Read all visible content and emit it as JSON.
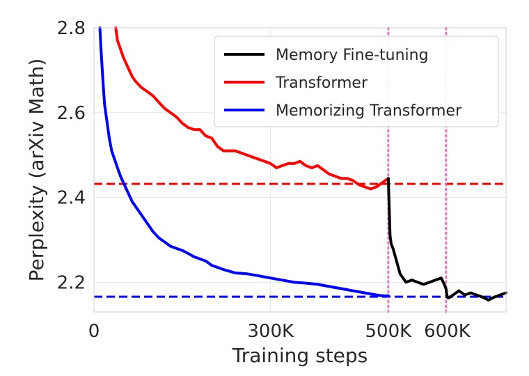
{
  "chart_data": {
    "type": "line",
    "title": "",
    "xlabel": "Training steps",
    "ylabel": "Perplexity (arXiv Math)",
    "xlim": [
      0,
      700000
    ],
    "ylim": [
      2.13,
      2.8
    ],
    "grid": true,
    "legend_position": "top-right",
    "x_ticks": [
      {
        "value": 0,
        "label": "0"
      },
      {
        "value": 300000,
        "label": "300K"
      },
      {
        "value": 500000,
        "label": "500K"
      },
      {
        "value": 600000,
        "label": "600K"
      }
    ],
    "y_ticks": [
      {
        "value": 2.2,
        "label": "2.2"
      },
      {
        "value": 2.4,
        "label": "2.4"
      },
      {
        "value": 2.6,
        "label": "2.6"
      },
      {
        "value": 2.8,
        "label": "2.8"
      }
    ],
    "series": [
      {
        "name": "Memory Fine-tuning",
        "color": "#000000",
        "x": [
          500000,
          501000,
          503000,
          505000,
          508000,
          512000,
          516000,
          520000,
          525000,
          530000,
          540000,
          550000,
          560000,
          570000,
          580000,
          590000,
          595000,
          598000,
          600000,
          602000,
          605000,
          610000,
          615000,
          620000,
          630000,
          640000,
          650000,
          660000,
          670000,
          680000,
          690000,
          700000
        ],
        "y": [
          2.445,
          2.4,
          2.31,
          2.29,
          2.28,
          2.26,
          2.24,
          2.22,
          2.21,
          2.2,
          2.205,
          2.2,
          2.195,
          2.2,
          2.205,
          2.21,
          2.195,
          2.185,
          2.165,
          2.163,
          2.165,
          2.17,
          2.175,
          2.18,
          2.17,
          2.175,
          2.17,
          2.165,
          2.158,
          2.165,
          2.17,
          2.175
        ]
      },
      {
        "name": "Transformer",
        "color": "#ff0000",
        "x": [
          37000,
          40000,
          45000,
          50000,
          55000,
          60000,
          65000,
          70000,
          80000,
          90000,
          100000,
          110000,
          120000,
          130000,
          140000,
          150000,
          160000,
          170000,
          180000,
          190000,
          200000,
          210000,
          220000,
          230000,
          240000,
          250000,
          260000,
          270000,
          280000,
          290000,
          300000,
          310000,
          320000,
          330000,
          340000,
          350000,
          360000,
          370000,
          380000,
          390000,
          400000,
          410000,
          420000,
          430000,
          440000,
          450000,
          460000,
          470000,
          480000,
          490000,
          495000,
          500000
        ],
        "y": [
          2.8,
          2.77,
          2.75,
          2.73,
          2.715,
          2.7,
          2.685,
          2.675,
          2.66,
          2.65,
          2.64,
          2.625,
          2.61,
          2.6,
          2.59,
          2.575,
          2.565,
          2.56,
          2.56,
          2.545,
          2.54,
          2.52,
          2.51,
          2.51,
          2.51,
          2.505,
          2.5,
          2.495,
          2.49,
          2.485,
          2.48,
          2.47,
          2.475,
          2.48,
          2.48,
          2.485,
          2.475,
          2.47,
          2.475,
          2.465,
          2.455,
          2.45,
          2.445,
          2.445,
          2.44,
          2.43,
          2.425,
          2.42,
          2.425,
          2.435,
          2.44,
          2.445
        ]
      },
      {
        "name": "Memorizing Transformer",
        "color": "#0000ff",
        "x": [
          10000,
          12000,
          15000,
          18000,
          22000,
          26000,
          30000,
          35000,
          40000,
          45000,
          50000,
          55000,
          60000,
          65000,
          70000,
          80000,
          90000,
          100000,
          110000,
          120000,
          130000,
          140000,
          150000,
          160000,
          170000,
          180000,
          190000,
          200000,
          220000,
          240000,
          260000,
          280000,
          300000,
          320000,
          340000,
          360000,
          380000,
          400000,
          420000,
          440000,
          460000,
          480000,
          490000,
          500000
        ],
        "y": [
          2.8,
          2.75,
          2.68,
          2.62,
          2.58,
          2.54,
          2.51,
          2.49,
          2.47,
          2.45,
          2.435,
          2.42,
          2.405,
          2.39,
          2.38,
          2.36,
          2.34,
          2.32,
          2.305,
          2.295,
          2.285,
          2.28,
          2.275,
          2.268,
          2.26,
          2.255,
          2.25,
          2.24,
          2.23,
          2.222,
          2.22,
          2.215,
          2.21,
          2.205,
          2.2,
          2.198,
          2.195,
          2.19,
          2.185,
          2.18,
          2.175,
          2.17,
          2.168,
          2.168
        ]
      }
    ],
    "reference_lines": [
      {
        "orientation": "horizontal",
        "value": 2.432,
        "color": "#ff0000",
        "style": "dashed"
      },
      {
        "orientation": "horizontal",
        "value": 2.166,
        "color": "#0000ff",
        "style": "dashed"
      },
      {
        "orientation": "vertical",
        "value": 500000,
        "color": "#e377c2",
        "style": "dotted"
      },
      {
        "orientation": "vertical",
        "value": 598000,
        "color": "#e377c2",
        "style": "dotted"
      }
    ]
  }
}
